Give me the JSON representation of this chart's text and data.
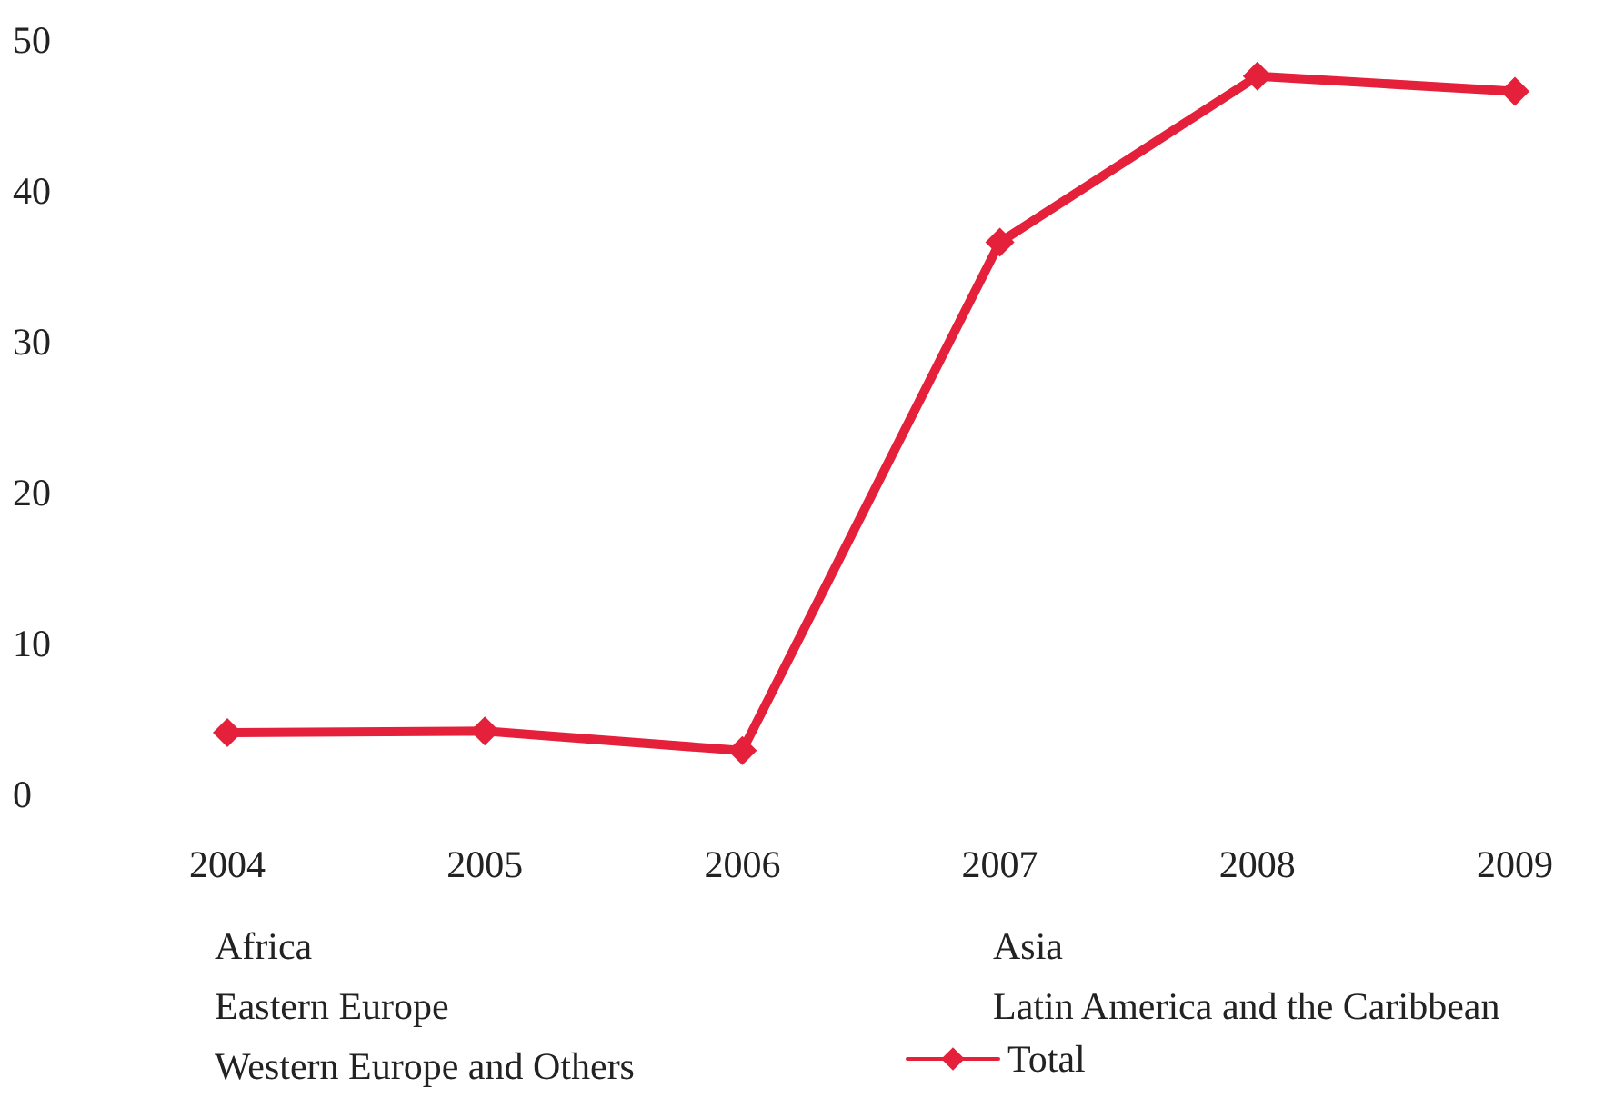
{
  "chart_data": {
    "type": "line",
    "categories": [
      "2004",
      "2005",
      "2006",
      "2007",
      "2008",
      "2009"
    ],
    "series": [
      {
        "name": "Total",
        "color": "#e5203a",
        "values": [
          4.1,
          4.2,
          2.9,
          36.6,
          47.6,
          46.6
        ]
      }
    ],
    "ylim": [
      0,
      50
    ],
    "yticks": [
      0,
      10,
      20,
      30,
      40,
      50
    ],
    "grid": false,
    "legend": "bottom",
    "marker": "diamond",
    "line_style": "solid",
    "annotations": [
      "Africa",
      "Eastern Europe",
      "Western Europe and Others",
      "Asia",
      "Latin America and the Caribbean"
    ]
  }
}
